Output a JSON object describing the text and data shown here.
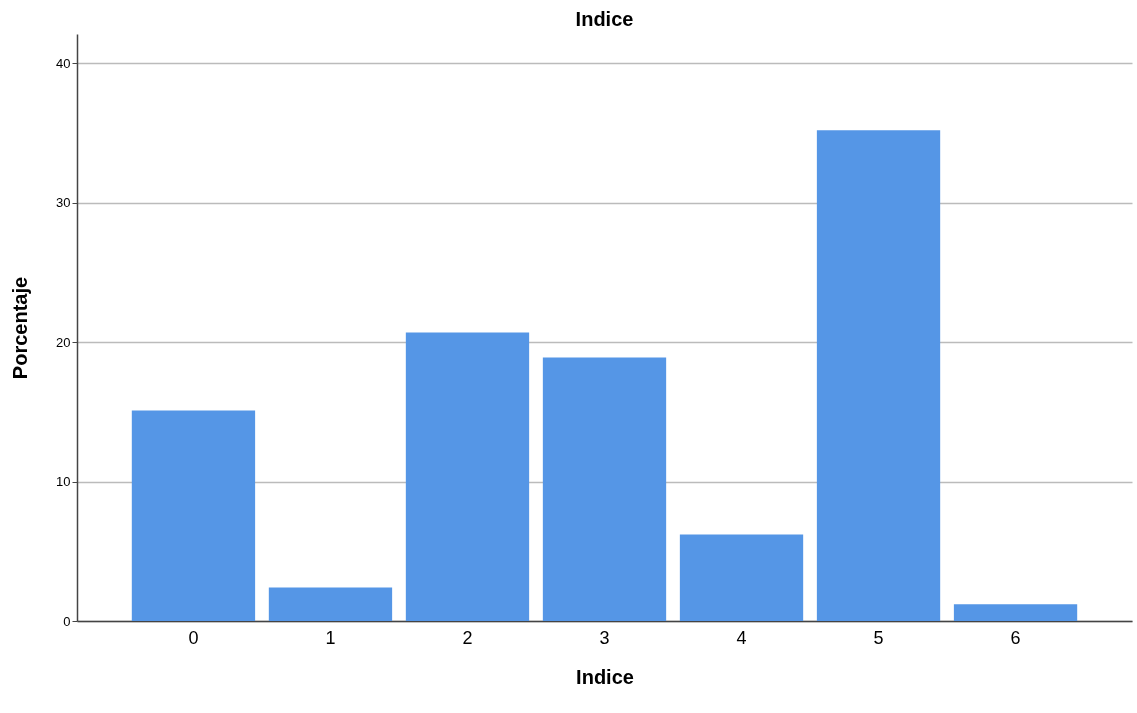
{
  "chart_data": {
    "type": "bar",
    "title": "Indice",
    "xlabel": "Indice",
    "ylabel": "Porcentaje",
    "categories": [
      "0",
      "1",
      "2",
      "3",
      "4",
      "5",
      "6"
    ],
    "values": [
      15.1,
      2.4,
      20.7,
      18.9,
      6.2,
      35.2,
      1.2
    ],
    "color": "#5596e6",
    "ylim": [
      0,
      42.1
    ],
    "yticks": [
      0,
      10,
      20,
      30,
      40
    ],
    "grid": "y"
  }
}
